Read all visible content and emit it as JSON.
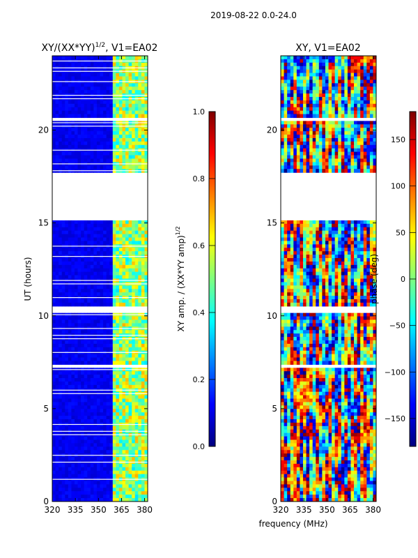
{
  "figure_title": "2019-08-22 0.0-24.0",
  "shared_xlabel": "frequency (MHz)",
  "chart_data": [
    {
      "type": "heatmap",
      "title": "XY/(XX*YY)",
      "title_exponent": "1/2",
      "title_suffix": ", V1=EA02",
      "xlabel": "",
      "ylabel": "UT (hours)",
      "xlim": [
        320,
        382
      ],
      "ylim": [
        0,
        24
      ],
      "xticks": [
        320,
        335,
        350,
        365,
        380
      ],
      "yticks": [
        0,
        5,
        10,
        15,
        20
      ],
      "colormap": "jet",
      "colorbar": {
        "label": "XY amp. / (XX*YY amp)",
        "label_exponent": "1/2",
        "range": [
          0.0,
          1.0
        ],
        "ticks": [
          0.0,
          0.2,
          0.4,
          0.6,
          0.8,
          1.0
        ],
        "tick_labels": [
          "0.0",
          "0.2",
          "0.4",
          "0.6",
          "0.8",
          "1.0"
        ]
      },
      "background_level": 0.08,
      "bright_band_mhz": [
        360,
        382
      ],
      "bright_band_level": 0.35,
      "blank_intervals_hours": [
        [
          15.1,
          17.8
        ],
        [
          20.5,
          20.7
        ],
        [
          10.2,
          10.45
        ],
        [
          7.2,
          7.4
        ],
        [
          1.6,
          1.75
        ]
      ]
    },
    {
      "type": "heatmap",
      "title": "XY, V1=EA02",
      "xlabel": "",
      "ylabel": "",
      "xlim": [
        320,
        382
      ],
      "ylim": [
        0,
        24
      ],
      "xticks": [
        320,
        335,
        350,
        365,
        380
      ],
      "yticks": [
        0,
        5,
        10,
        15,
        20
      ],
      "colormap": "jet",
      "colorbar": {
        "label": "phase (deg)",
        "range": [
          -180,
          180
        ],
        "ticks": [
          -150,
          -100,
          -50,
          0,
          50,
          100,
          150
        ],
        "tick_labels": [
          "−150",
          "−100",
          "−50",
          "0",
          "50",
          "100",
          "150"
        ]
      },
      "blank_intervals_hours": [
        [
          15.1,
          17.8
        ],
        [
          20.5,
          20.7
        ],
        [
          10.2,
          10.45
        ],
        [
          7.2,
          7.4
        ],
        [
          1.6,
          1.75
        ]
      ]
    }
  ],
  "colors": {
    "jet": [
      "#00007f",
      "#0000ff",
      "#007fff",
      "#00ffff",
      "#7fff7f",
      "#ffff00",
      "#ff7f00",
      "#ff0000",
      "#7f0000"
    ]
  }
}
